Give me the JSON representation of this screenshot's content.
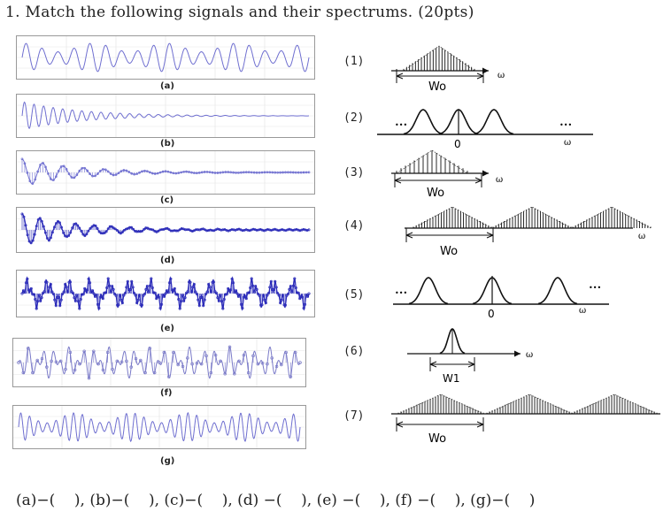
{
  "title": "1. Match the following signals and their spectrums. (20pts)",
  "signals": [
    {
      "label": "(a)"
    },
    {
      "label": "(b)"
    },
    {
      "label": "(c)"
    },
    {
      "label": "(d)"
    },
    {
      "label": "(e)"
    },
    {
      "label": "(f)"
    },
    {
      "label": "(g)"
    }
  ],
  "spectra": [
    {
      "num": "(1)",
      "width_label": "Wo",
      "axis_label": "ω"
    },
    {
      "num": "(2)",
      "origin_label": "0",
      "axis_label": "ω",
      "dots": "•••"
    },
    {
      "num": "(3)",
      "width_label": "Wo",
      "axis_label": "ω"
    },
    {
      "num": "(4)",
      "width_label": "Wo",
      "axis_label": "ω"
    },
    {
      "num": "(5)",
      "origin_label": "0",
      "axis_label": "ω",
      "dots": "•••"
    },
    {
      "num": "(6)",
      "width_label": "W1",
      "axis_label": "ω"
    },
    {
      "num": "(7)",
      "width_label": "Wo"
    }
  ],
  "answer_line": "(a)−(    ), (b)−(    ), (c)−(    ), (d) −(    ), (e) −(    ), (f) −(    ), (g)−(    )"
}
